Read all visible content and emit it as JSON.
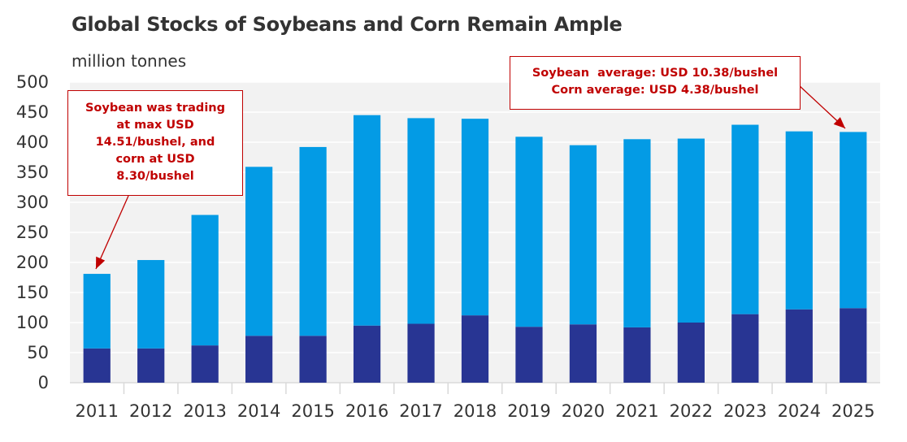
{
  "title": "Global Stocks of Soybeans and Corn Remain Ample",
  "unit_label": "million tonnes",
  "colors": {
    "soybean": "#039be5",
    "corn": "#283593",
    "plot_bg": "#f2f2f2",
    "callout": "#c00000"
  },
  "callouts": {
    "left": {
      "lines": [
        "Soybean was trading",
        "at max USD",
        "14.51/bushel, and",
        "corn at USD",
        "8.30/bushel"
      ]
    },
    "right": {
      "lines": [
        "Soybean  average: USD 10.38/bushel",
        "Corn average: USD 4.38/bushel"
      ]
    }
  },
  "chart_data": {
    "type": "bar",
    "stacked": true,
    "categories": [
      "2011",
      "2012",
      "2013",
      "2014",
      "2015",
      "2016",
      "2017",
      "2018",
      "2019",
      "2020",
      "2021",
      "2022",
      "2023",
      "2024",
      "2025"
    ],
    "series": [
      {
        "values": [
          57,
          57,
          62,
          78,
          78,
          95,
          98,
          112,
          93,
          97,
          92,
          100,
          114,
          122,
          124
        ]
      },
      {
        "values": [
          124,
          147,
          217,
          281,
          314,
          350,
          342,
          327,
          316,
          298,
          313,
          306,
          315,
          296,
          293
        ]
      }
    ],
    "totals": [
      181,
      204,
      279,
      359,
      392,
      445,
      440,
      439,
      409,
      395,
      405,
      406,
      429,
      418,
      417
    ],
    "ylim": [
      0,
      500
    ],
    "yticks": [
      0,
      50,
      100,
      150,
      200,
      250,
      300,
      350,
      400,
      450,
      500
    ],
    "grid": true
  }
}
